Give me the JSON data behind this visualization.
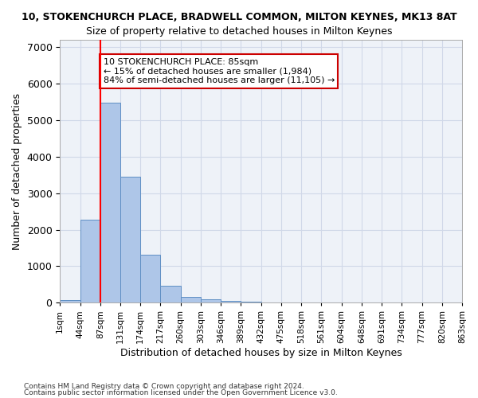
{
  "title_line1": "10, STOKENCHURCH PLACE, BRADWELL COMMON, MILTON KEYNES, MK13 8AT",
  "title_line2": "Size of property relative to detached houses in Milton Keynes",
  "xlabel": "Distribution of detached houses by size in Milton Keynes",
  "ylabel": "Number of detached properties",
  "footer_line1": "Contains HM Land Registry data © Crown copyright and database right 2024.",
  "footer_line2": "Contains public sector information licensed under the Open Government Licence v3.0.",
  "bin_labels": [
    "1sqm",
    "44sqm",
    "87sqm",
    "131sqm",
    "174sqm",
    "217sqm",
    "260sqm",
    "303sqm",
    "346sqm",
    "389sqm",
    "432sqm",
    "475sqm",
    "518sqm",
    "561sqm",
    "604sqm",
    "648sqm",
    "691sqm",
    "734sqm",
    "777sqm",
    "820sqm",
    "863sqm"
  ],
  "bar_values": [
    80,
    2280,
    5470,
    3450,
    1320,
    470,
    160,
    85,
    55,
    30,
    0,
    0,
    0,
    0,
    0,
    0,
    0,
    0,
    0,
    0
  ],
  "bar_color": "#aec6e8",
  "bar_edge_color": "#5f8fc4",
  "grid_color": "#d0d8e8",
  "background_color": "#eef2f8",
  "red_line_x": 2,
  "annotation_text": "10 STOKENCHURCH PLACE: 85sqm\n← 15% of detached houses are smaller (1,984)\n84% of semi-detached houses are larger (11,105) →",
  "annotation_box_color": "#ffffff",
  "annotation_box_edge_color": "#cc0000",
  "ylim": [
    0,
    7200
  ],
  "yticks": [
    0,
    1000,
    2000,
    3000,
    4000,
    5000,
    6000,
    7000
  ]
}
